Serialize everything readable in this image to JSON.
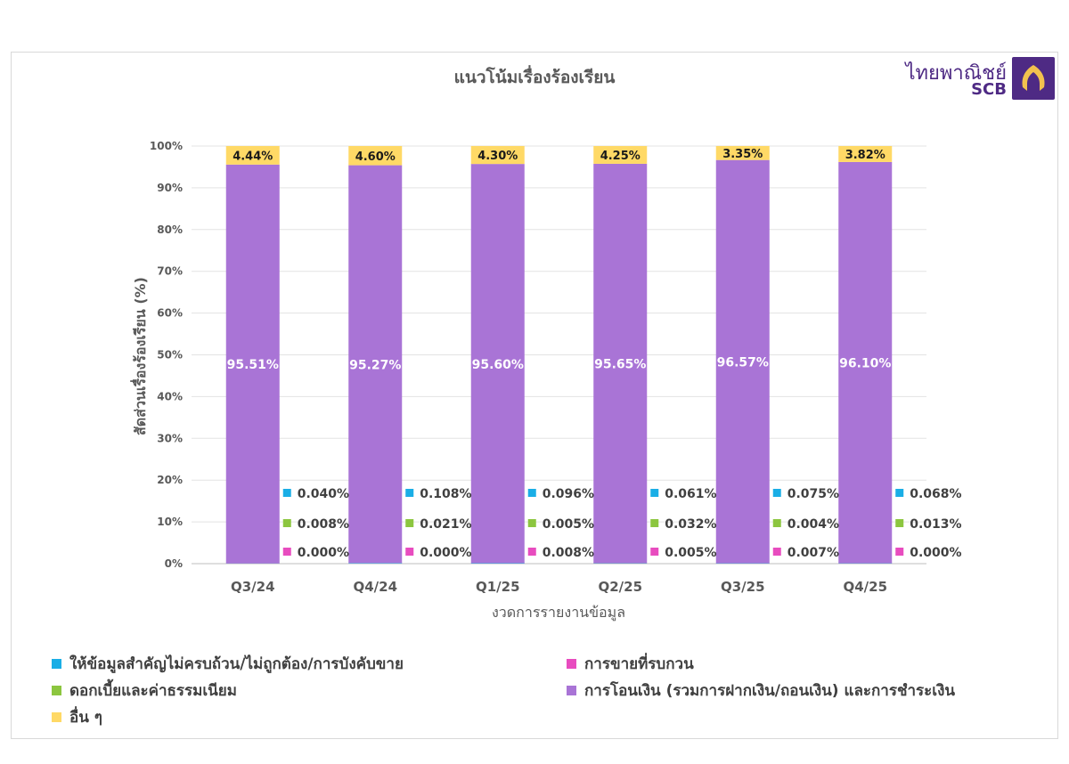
{
  "title": "แนวโน้มเรื่องร้องเรียน",
  "logo": {
    "thai": "ไทยพาณิชย์",
    "en": "SCB"
  },
  "colors": {
    "info": "#1aaee6",
    "fees": "#8cc63f",
    "mis_selling": "#e84cbf",
    "transfer": "#a974d6",
    "other": "#ffd966"
  },
  "legend": {
    "info": "ให้ข้อมูลสำคัญไม่ครบถ้วน/ไม่ถูกต้อง/การบังคับขาย",
    "mis_selling": "การขายที่รบกวน",
    "fees": "ดอกเบี้ยและค่าธรรมเนียม",
    "transfer": "การโอนเงิน (รวมการฝากเงิน/ถอนเงิน) และการชำระเงิน",
    "other": "อื่น ๆ"
  },
  "chart_data": {
    "type": "bar",
    "stacked": true,
    "title": "แนวโน้มเรื่องร้องเรียน",
    "xlabel": "งวดการรายงานข้อมูล",
    "ylabel": "สัดส่วนเรื่องร้องเรียน (%)",
    "ylim": [
      0,
      100
    ],
    "yticks": [
      "0%",
      "10%",
      "20%",
      "30%",
      "40%",
      "50%",
      "60%",
      "70%",
      "80%",
      "90%",
      "100%"
    ],
    "grid": true,
    "legend_position": "bottom",
    "categories": [
      "Q3/24",
      "Q4/24",
      "Q1/25",
      "Q2/25",
      "Q3/25",
      "Q4/25"
    ],
    "series": [
      {
        "key": "transfer",
        "values": [
          95.51,
          95.27,
          95.6,
          95.65,
          96.57,
          96.1
        ],
        "labels": [
          "95.51%",
          "95.27%",
          "95.60%",
          "95.65%",
          "96.57%",
          "96.10%"
        ]
      },
      {
        "key": "other",
        "values": [
          4.44,
          4.6,
          4.3,
          4.25,
          3.35,
          3.82
        ],
        "labels": [
          "4.44%",
          "4.60%",
          "4.30%",
          "4.25%",
          "3.35%",
          "3.82%"
        ]
      },
      {
        "key": "info",
        "values": [
          0.04,
          0.108,
          0.096,
          0.061,
          0.075,
          0.068
        ],
        "labels": [
          "0.040%",
          "0.108%",
          "0.096%",
          "0.061%",
          "0.075%",
          "0.068%"
        ]
      },
      {
        "key": "fees",
        "values": [
          0.008,
          0.021,
          0.005,
          0.032,
          0.004,
          0.013
        ],
        "labels": [
          "0.008%",
          "0.021%",
          "0.005%",
          "0.032%",
          "0.004%",
          "0.013%"
        ]
      },
      {
        "key": "mis_selling",
        "values": [
          0.0,
          0.0,
          0.008,
          0.005,
          0.007,
          0.0
        ],
        "labels": [
          "0.000%",
          "0.000%",
          "0.008%",
          "0.005%",
          "0.007%",
          "0.000%"
        ]
      }
    ]
  }
}
